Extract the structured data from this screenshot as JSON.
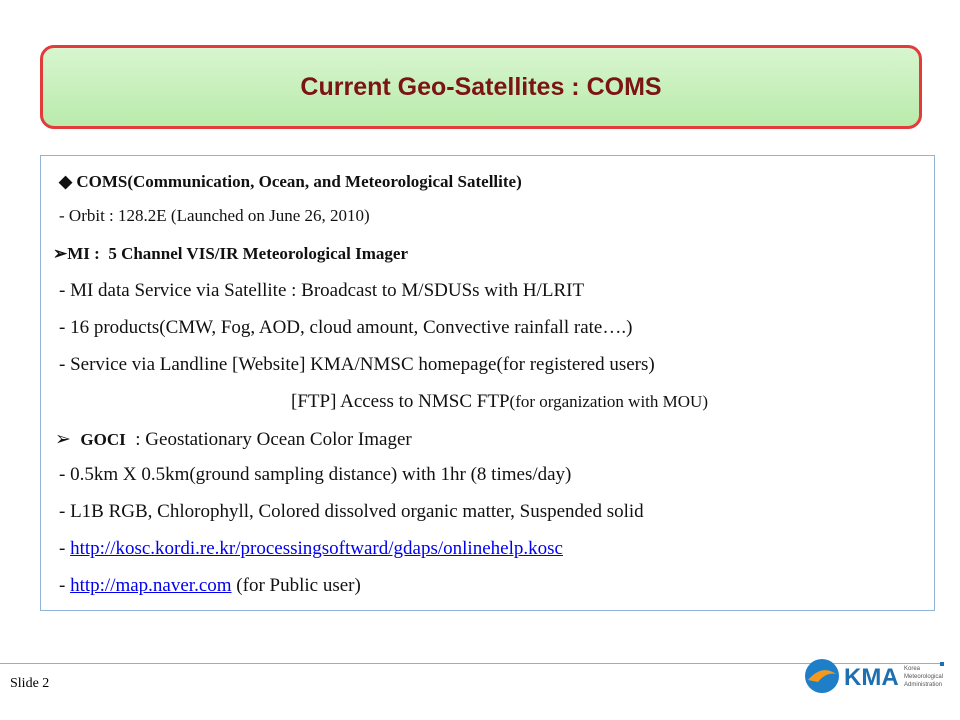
{
  "title": "Current Geo-Satellites : COMS",
  "content": [
    [
      "COMS(Communication, Ocean, and Meteorological Satellite)"
    ],
    [
      "- Orbit : 128.2E (Launched on June 26, 2010)"
    ],
    [
      "MI :  5 Channel VIS/IR Meteorological Imager"
    ],
    [
      "- MI data Service via Satellite : Broadcast to M/SDUSs with H/LRIT"
    ],
    [
      "- 16 products(CMW, Fog, AOD, cloud amount, Convective rainfall rate….)"
    ],
    [
      "- Service via Landline [Website] KMA/NMSC homepage(for registered users)"
    ],
    [
      "[FTP] Access to NMSC FTP",
      "(for organization with MOU)"
    ],
    [
      "GOCI",
      "  : Geostationary Ocean Color Imager"
    ],
    [
      "- 0.5km X 0.5km(ground sampling distance) with 1hr (8 times/day)"
    ],
    [
      "- L1B RGB, Chlorophyll, Colored dissolved organic matter, Suspended solid"
    ],
    [
      "- ",
      "http://kosc.kordi.re.kr/processingsoftward/gdaps/onlinehelp.kosc"
    ],
    [
      "- ",
      "http://map.naver.com",
      " (for Public user)"
    ]
  ],
  "footer": {
    "slide": "Slide 2",
    "logo": "KMA",
    "logo_subtitle": [
      "Korea",
      "Meteorological",
      "Administration"
    ]
  }
}
